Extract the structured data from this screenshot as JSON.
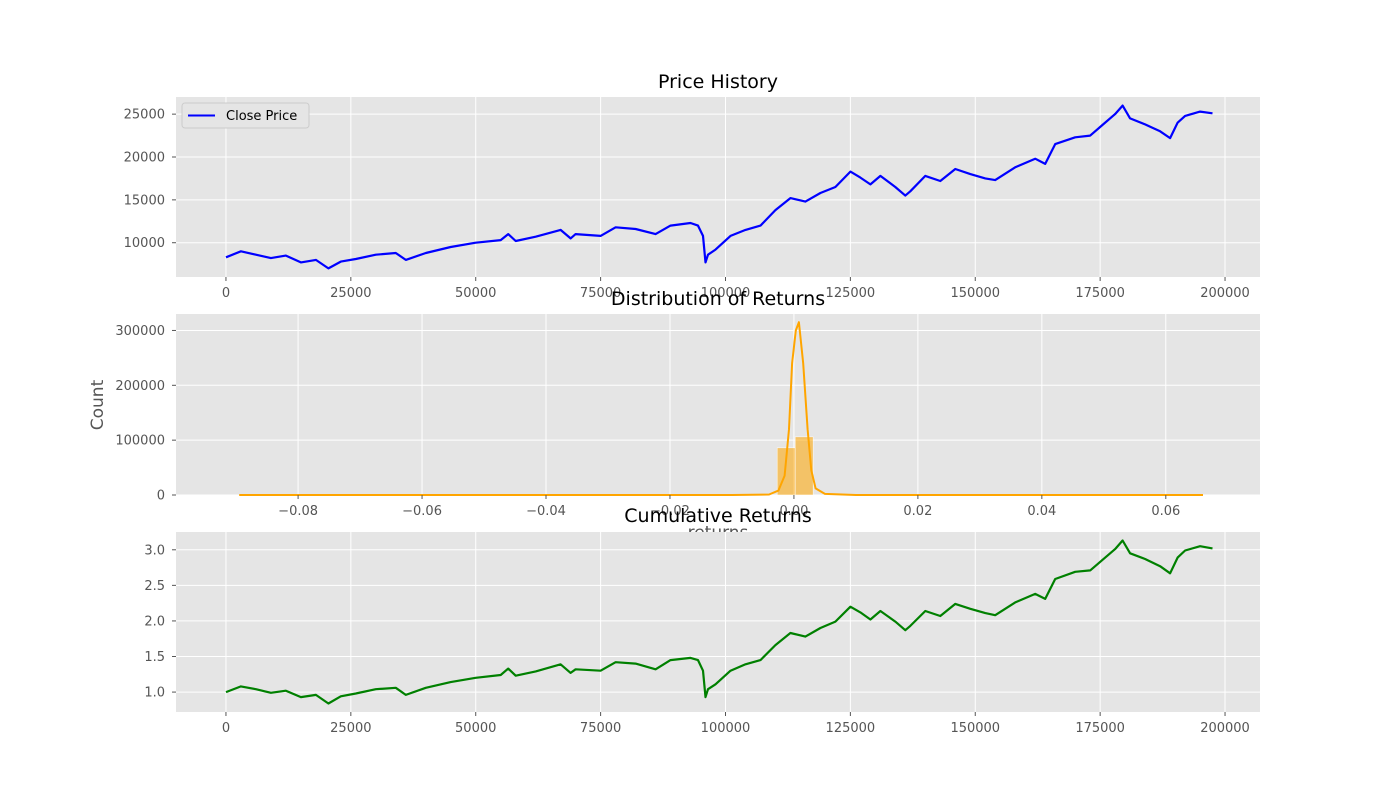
{
  "figure": {
    "background": "#ffffff",
    "panel_background": "#e5e5e5",
    "grid_color": "#ffffff"
  },
  "chart_data": [
    {
      "type": "line",
      "title": "Price History",
      "xlabel": "",
      "ylabel": "",
      "xlim": [
        -10000,
        207000
      ],
      "ylim": [
        6000,
        27000
      ],
      "xticks": [
        0,
        25000,
        50000,
        75000,
        100000,
        125000,
        150000,
        175000,
        200000
      ],
      "xtick_labels": [
        "0",
        "25000",
        "50000",
        "75000",
        "100000",
        "125000",
        "150000",
        "175000",
        "200000"
      ],
      "yticks": [
        10000,
        15000,
        20000,
        25000
      ],
      "ytick_labels": [
        "10000",
        "15000",
        "20000",
        "25000"
      ],
      "grid": true,
      "legend": {
        "position": "upper-left",
        "entries": [
          "Close Price"
        ]
      },
      "series": [
        {
          "name": "Close Price",
          "color": "#0000ff",
          "x": [
            0,
            3000,
            6000,
            9000,
            12000,
            15000,
            18000,
            20500,
            23000,
            26000,
            30000,
            34000,
            36000,
            40000,
            45000,
            50000,
            55000,
            56500,
            58000,
            62000,
            67000,
            69000,
            70000,
            75000,
            78000,
            82000,
            86000,
            89000,
            93000,
            94500,
            95500,
            96000,
            96500,
            98000,
            101000,
            104000,
            107000,
            110000,
            113000,
            116000,
            119000,
            122000,
            125000,
            127000,
            129000,
            131000,
            134000,
            136000,
            137000,
            140000,
            143000,
            146000,
            149000,
            152000,
            154000,
            158000,
            162000,
            164000,
            166000,
            170000,
            173000,
            175000,
            178000,
            179500,
            181000,
            184000,
            187000,
            189000,
            190500,
            192000,
            195000,
            197500
          ],
          "y": [
            8300,
            9000,
            8600,
            8200,
            8500,
            7700,
            8000,
            7000,
            7800,
            8100,
            8600,
            8800,
            8000,
            8800,
            9500,
            10000,
            10300,
            11000,
            10200,
            10700,
            11500,
            10500,
            11000,
            10800,
            11800,
            11600,
            11000,
            12000,
            12300,
            12000,
            10800,
            7700,
            8600,
            9200,
            10800,
            11500,
            12000,
            13800,
            15200,
            14800,
            15800,
            16500,
            18300,
            17600,
            16800,
            17800,
            16500,
            15500,
            16000,
            17800,
            17200,
            18600,
            18000,
            17500,
            17300,
            18800,
            19800,
            19200,
            21500,
            22300,
            22500,
            23500,
            25000,
            26000,
            24500,
            23800,
            23000,
            22200,
            24000,
            24800,
            25300,
            25100
          ]
        }
      ]
    },
    {
      "type": "bar",
      "title": "Distribution of Returns",
      "xlabel": "returns",
      "ylabel": "Count",
      "xlim": [
        -0.0997,
        0.0752
      ],
      "ylim": [
        0,
        330000
      ],
      "xticks": [
        -0.08,
        -0.06,
        -0.04,
        -0.02,
        0.0,
        0.02,
        0.04,
        0.06
      ],
      "xtick_labels": [
        "−0.08",
        "−0.06",
        "−0.04",
        "−0.02",
        "0.00",
        "0.02",
        "0.04",
        "0.06"
      ],
      "yticks": [
        0,
        100000,
        200000,
        300000
      ],
      "ytick_labels": [
        "0",
        "100000",
        "200000",
        "300000"
      ],
      "grid": true,
      "bars": {
        "color": "#ffa500",
        "opacity": 0.55,
        "bin_left": [
          -0.0027,
          0.0002
        ],
        "bin_width": 0.0029,
        "counts": [
          86000,
          106000
        ]
      },
      "kde": {
        "color": "#ffa500",
        "x": [
          -0.0895,
          -0.01,
          -0.004,
          -0.0025,
          -0.0015,
          -0.0008,
          -0.0003,
          0.0003,
          0.0008,
          0.0015,
          0.0022,
          0.0028,
          0.0035,
          0.005,
          0.01,
          0.066
        ],
        "y": [
          0,
          0,
          1000,
          8000,
          35000,
          120000,
          240000,
          300000,
          315000,
          240000,
          120000,
          45000,
          12000,
          2000,
          0,
          0
        ]
      }
    },
    {
      "type": "line",
      "title": "Cumulative Returns",
      "xlabel": "",
      "ylabel": "",
      "xlim": [
        -10000,
        207000
      ],
      "ylim": [
        0.72,
        3.25
      ],
      "xticks": [
        0,
        25000,
        50000,
        75000,
        100000,
        125000,
        150000,
        175000,
        200000
      ],
      "xtick_labels": [
        "0",
        "25000",
        "50000",
        "75000",
        "100000",
        "125000",
        "150000",
        "175000",
        "200000"
      ],
      "yticks": [
        1.0,
        1.5,
        2.0,
        2.5,
        3.0
      ],
      "ytick_labels": [
        "1.0",
        "1.5",
        "2.0",
        "2.5",
        "3.0"
      ],
      "grid": true,
      "series": [
        {
          "name": "",
          "color": "#008000",
          "x": [
            0,
            3000,
            6000,
            9000,
            12000,
            15000,
            18000,
            20500,
            23000,
            26000,
            30000,
            34000,
            36000,
            40000,
            45000,
            50000,
            55000,
            56500,
            58000,
            62000,
            67000,
            69000,
            70000,
            75000,
            78000,
            82000,
            86000,
            89000,
            93000,
            94500,
            95500,
            96000,
            96500,
            98000,
            101000,
            104000,
            107000,
            110000,
            113000,
            116000,
            119000,
            122000,
            125000,
            127000,
            129000,
            131000,
            134000,
            136000,
            137000,
            140000,
            143000,
            146000,
            149000,
            152000,
            154000,
            158000,
            162000,
            164000,
            166000,
            170000,
            173000,
            175000,
            178000,
            179500,
            181000,
            184000,
            187000,
            189000,
            190500,
            192000,
            195000,
            197500
          ],
          "y": [
            1.0,
            1.08,
            1.04,
            0.99,
            1.02,
            0.93,
            0.96,
            0.84,
            0.94,
            0.98,
            1.04,
            1.06,
            0.96,
            1.06,
            1.14,
            1.2,
            1.24,
            1.33,
            1.23,
            1.29,
            1.39,
            1.27,
            1.32,
            1.3,
            1.42,
            1.4,
            1.32,
            1.45,
            1.48,
            1.45,
            1.3,
            0.93,
            1.04,
            1.11,
            1.3,
            1.39,
            1.45,
            1.66,
            1.83,
            1.78,
            1.9,
            1.99,
            2.2,
            2.12,
            2.02,
            2.14,
            1.99,
            1.87,
            1.93,
            2.14,
            2.07,
            2.24,
            2.17,
            2.11,
            2.08,
            2.26,
            2.38,
            2.31,
            2.59,
            2.69,
            2.71,
            2.83,
            3.01,
            3.13,
            2.95,
            2.87,
            2.77,
            2.67,
            2.89,
            2.99,
            3.05,
            3.02
          ]
        }
      ]
    }
  ]
}
